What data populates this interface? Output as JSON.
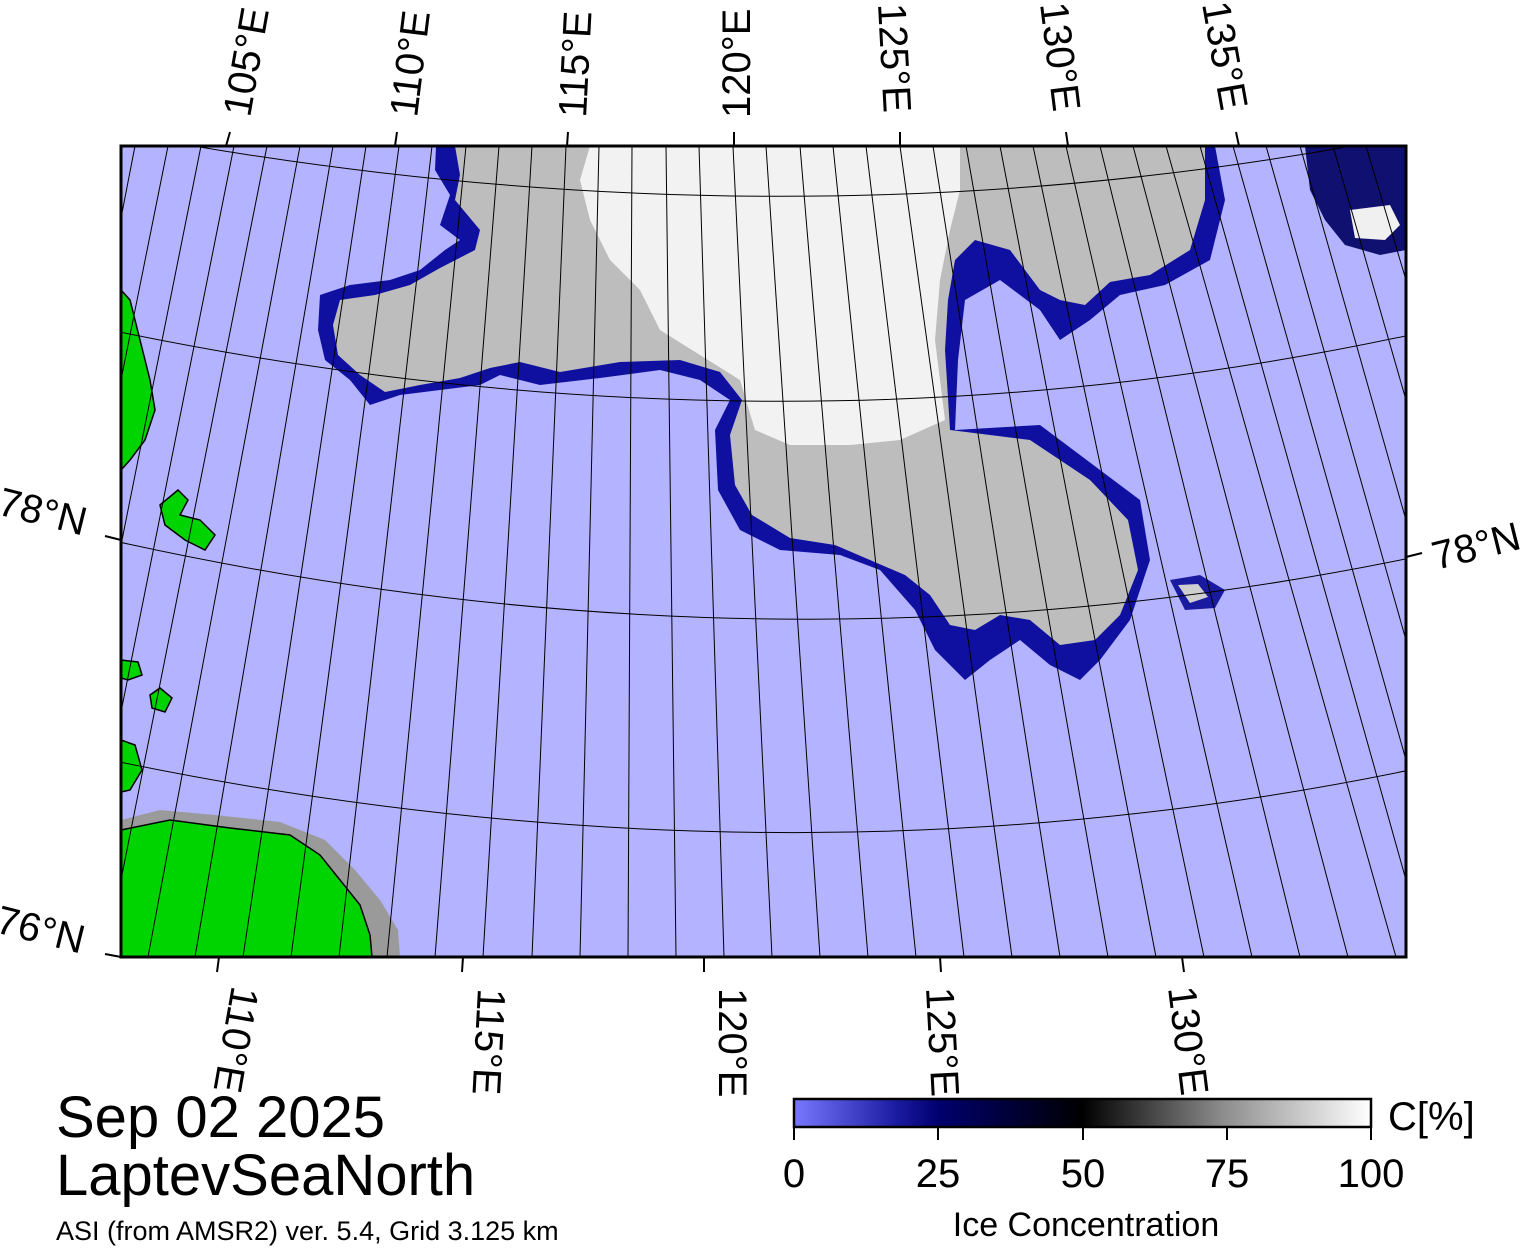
{
  "title": {
    "date": "Sep 02 2025",
    "region": "LaptevSeaNorth",
    "source": "ASI (from AMSR2) ver. 5.4,  Grid 3.125 km"
  },
  "map": {
    "top_longitude_labels": [
      "105°E",
      "110°E",
      "115°E",
      "120°E",
      "125°E",
      "130°E",
      "135°E"
    ],
    "bottom_longitude_labels": [
      "110°E",
      "115°E",
      "120°E",
      "125°E",
      "130°E"
    ],
    "left_latitude_labels": [
      "78°N",
      "76°N"
    ],
    "right_latitude_labels": [
      "78°N"
    ],
    "colors": {
      "open_water": "#b3b3ff",
      "land": "#00d400",
      "coast_ice": "#9a9a9a",
      "ice_edge": "#00008b",
      "high_ice": "#f4f4f4"
    }
  },
  "colorbar": {
    "unit_label": "C[%]",
    "axis_label": "Ice Concentration",
    "ticks": [
      "0",
      "25",
      "50",
      "75",
      "100"
    ],
    "colors": [
      "#7070ff",
      "#00006e",
      "#000000",
      "#909090",
      "#ffffff"
    ]
  }
}
